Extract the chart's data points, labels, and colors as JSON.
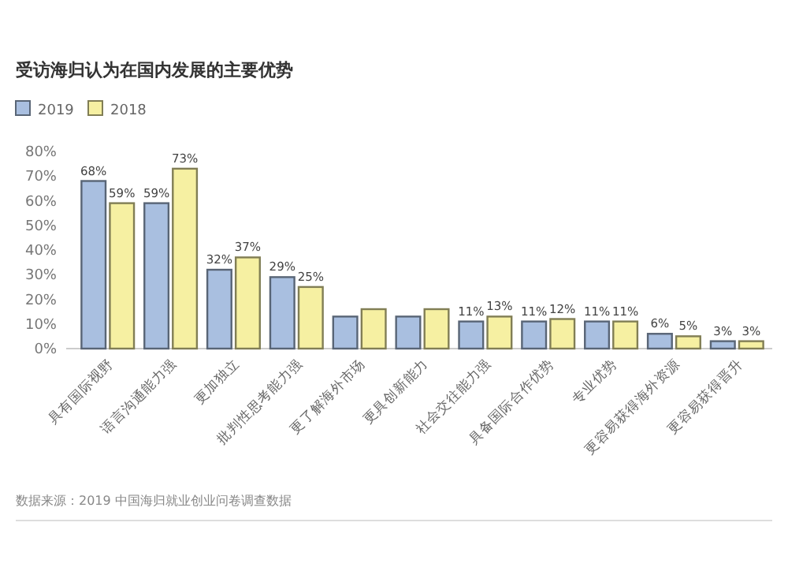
{
  "chart_data": {
    "type": "bar",
    "title": "受访海归认为在国内发展的主要优势",
    "categories": [
      "具有国际视野",
      "语言沟通能力强",
      "更加独立",
      "批判性思考能力强",
      "更了解海外市场",
      "更具创新能力",
      "社会交往能力强",
      "具备国际合作优势",
      "专业优势",
      "更容易获得海外资源",
      "更容易获得晋升"
    ],
    "series": [
      {
        "name": "2019",
        "color": "#a9bfe0",
        "values": [
          68,
          59,
          32,
          29,
          13,
          13,
          11,
          11,
          11,
          6,
          3
        ],
        "value_labels": [
          "68%",
          "59%",
          "32%",
          "29%",
          null,
          null,
          "11%",
          "11%",
          "11%",
          "6%",
          "3%"
        ]
      },
      {
        "name": "2018",
        "color": "#f6f0a2",
        "values": [
          59,
          73,
          37,
          25,
          16,
          16,
          13,
          12,
          11,
          5,
          3
        ],
        "value_labels": [
          "59%",
          "73%",
          "37%",
          "25%",
          null,
          null,
          "13%",
          "12%",
          "11%",
          "5%",
          "3%"
        ]
      }
    ],
    "ylim": [
      0,
      80
    ],
    "yticks": [
      {
        "value": 0,
        "label": "0%"
      },
      {
        "value": 10,
        "label": "10%"
      },
      {
        "value": 20,
        "label": "20%"
      },
      {
        "value": 30,
        "label": "30%"
      },
      {
        "value": 40,
        "label": "40%"
      },
      {
        "value": 50,
        "label": "50%"
      },
      {
        "value": 60,
        "label": "60%"
      },
      {
        "value": 70,
        "label": "70%"
      },
      {
        "value": 80,
        "label": "80%"
      }
    ],
    "grid": false,
    "legend": "top left",
    "annotations": [
      "数据来源：2019 中国海归就业创业问卷调查数据"
    ]
  }
}
